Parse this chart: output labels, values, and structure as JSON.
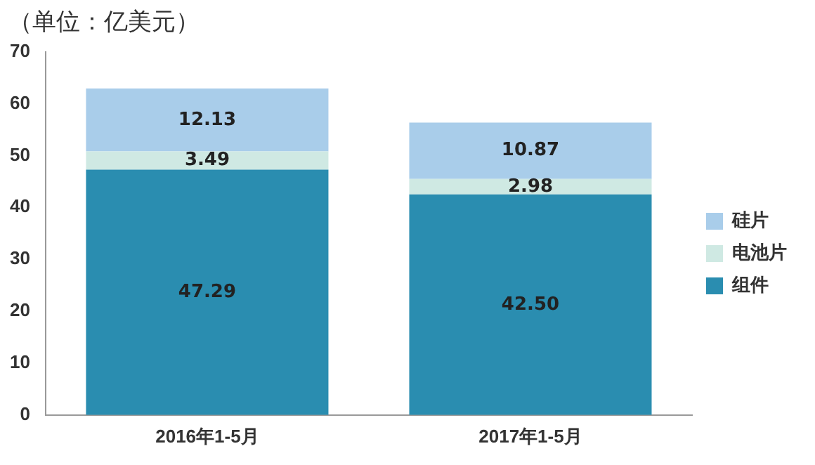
{
  "chart_data": {
    "type": "bar",
    "title": "（单位：亿美元）",
    "stacked": true,
    "categories": [
      "2016年1-5月",
      "2017年1-5月"
    ],
    "series": [
      {
        "name": "组件",
        "color": "#2a8db0",
        "values": [
          47.29,
          42.5
        ],
        "value_labels": [
          "47.29",
          "42.50"
        ]
      },
      {
        "name": "电池片",
        "color": "#cfe9e3",
        "values": [
          3.49,
          2.98
        ],
        "value_labels": [
          "3.49",
          "2.98"
        ]
      },
      {
        "name": "硅片",
        "color": "#a9cdea",
        "values": [
          12.13,
          10.87
        ],
        "value_labels": [
          "12.13",
          "10.87"
        ]
      }
    ],
    "ylim": [
      0,
      70
    ],
    "yticks": [
      0,
      10,
      20,
      30,
      40,
      50,
      60,
      70
    ],
    "grid": false,
    "legend": "right"
  }
}
